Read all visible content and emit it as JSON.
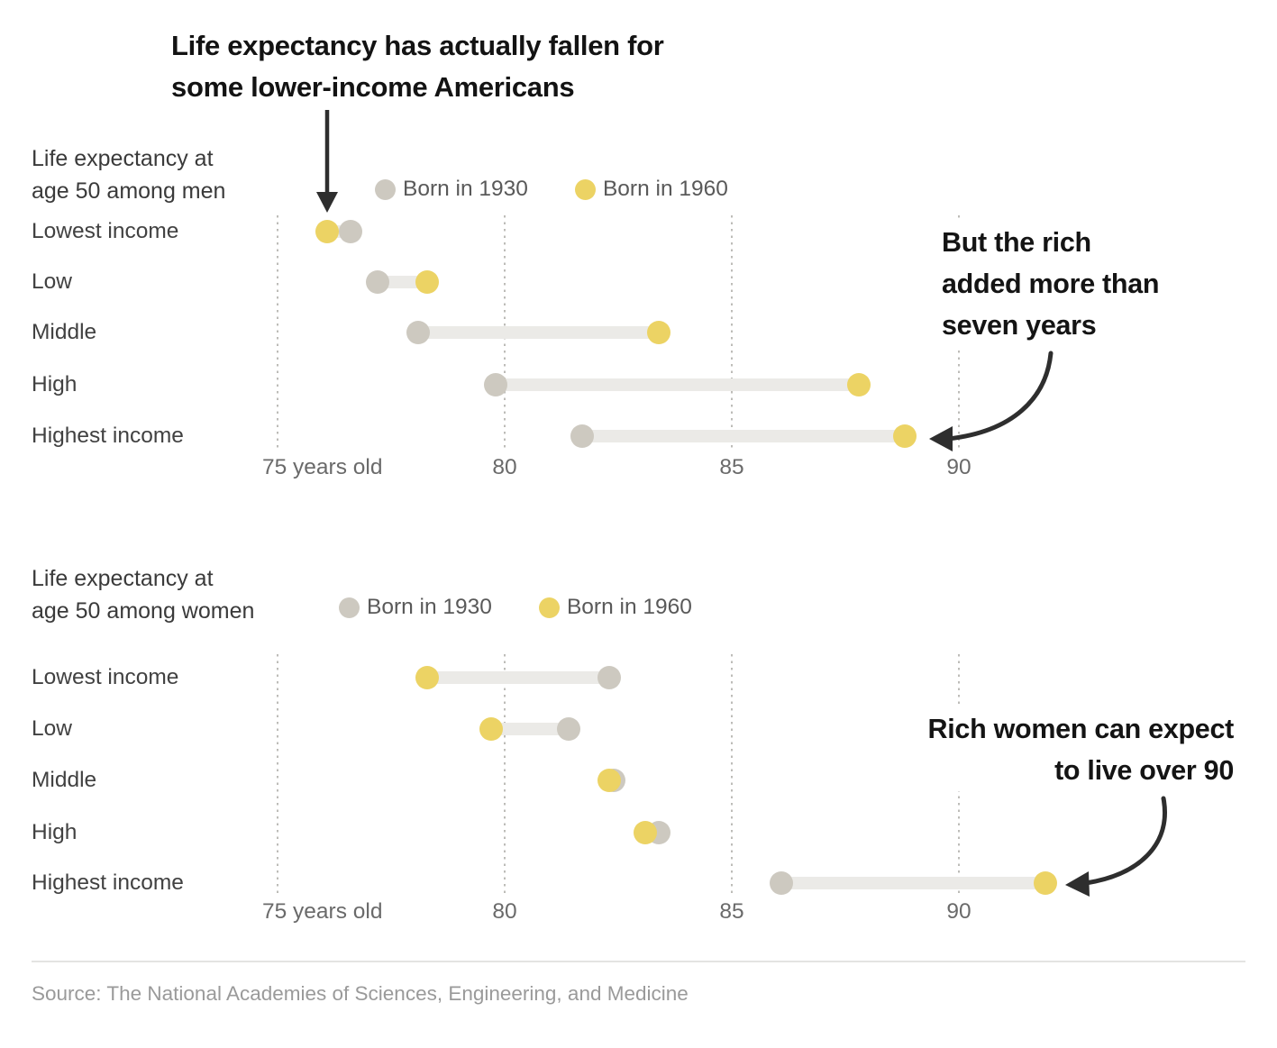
{
  "headline": {
    "line1": "Life expectancy has actually fallen for",
    "line2": "some lower-income Americans"
  },
  "annotations": {
    "men": {
      "line1": "But the rich",
      "line2": "added more than",
      "line3": "seven years"
    },
    "women": {
      "line1": "Rich women can expect",
      "line2": "to live over 90"
    }
  },
  "source": "Source: The National Academies of Sciences, Engineering, and Medicine",
  "colors": {
    "born_1930_dot": "#cdc9c0",
    "born_1960_dot": "#ecd364",
    "connector_bar": "#ebeae7",
    "gridline": "#bdbcb8",
    "arrow": "#2e2e2e"
  },
  "chart_data": [
    {
      "type": "dumbbell",
      "title": "Life expectancy at age 50 among men",
      "title_lines": [
        "Life expectancy at",
        "age 50 among men"
      ],
      "legend": [
        {
          "label": "Born in 1930",
          "color_key": "born_1930_dot"
        },
        {
          "label": "Born in 1960",
          "color_key": "born_1960_dot"
        }
      ],
      "categories": [
        "Lowest income",
        "Low",
        "Middle",
        "High",
        "Highest income"
      ],
      "series": [
        {
          "name": "Born in 1930",
          "values": [
            76.6,
            77.2,
            78.1,
            79.8,
            81.7
          ]
        },
        {
          "name": "Born in 1960",
          "values": [
            76.1,
            78.3,
            83.4,
            87.8,
            88.8
          ]
        }
      ],
      "x_ticks": [
        {
          "value": 75,
          "label": "75 years old"
        },
        {
          "value": 80,
          "label": "80"
        },
        {
          "value": 85,
          "label": "85"
        },
        {
          "value": 90,
          "label": "90"
        }
      ],
      "xlim": [
        73.8,
        93
      ],
      "grid": "dotted-vertical",
      "legend_position": "top"
    },
    {
      "type": "dumbbell",
      "title": "Life expectancy at age 50 among women",
      "title_lines": [
        "Life expectancy at",
        "age 50 among women"
      ],
      "legend": [
        {
          "label": "Born in 1930",
          "color_key": "born_1930_dot"
        },
        {
          "label": "Born in 1960",
          "color_key": "born_1960_dot"
        }
      ],
      "categories": [
        "Lowest income",
        "Low",
        "Middle",
        "High",
        "Highest income"
      ],
      "series": [
        {
          "name": "Born in 1930",
          "values": [
            82.3,
            81.4,
            82.4,
            83.4,
            86.1
          ]
        },
        {
          "name": "Born in 1960",
          "values": [
            78.3,
            79.7,
            82.3,
            83.1,
            91.9
          ]
        }
      ],
      "x_ticks": [
        {
          "value": 75,
          "label": "75 years old"
        },
        {
          "value": 80,
          "label": "80"
        },
        {
          "value": 85,
          "label": "85"
        },
        {
          "value": 90,
          "label": "90"
        }
      ],
      "xlim": [
        73.8,
        93
      ],
      "grid": "dotted-vertical",
      "legend_position": "top"
    }
  ]
}
